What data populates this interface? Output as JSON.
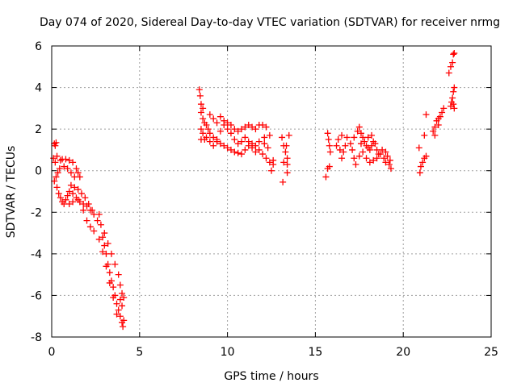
{
  "chart_data": {
    "type": "scatter",
    "title": "Day 074 of 2020, Sidereal Day-to-day VTEC variation (SDTVAR) for receiver nrmg",
    "xlabel": "GPS time / hours",
    "ylabel": "SDTVAR / TECUs",
    "xlim": [
      0,
      25
    ],
    "ylim": [
      -8,
      6
    ],
    "xticks": [
      0,
      5,
      10,
      15,
      20,
      25
    ],
    "yticks": [
      -8,
      -6,
      -4,
      -2,
      0,
      2,
      4,
      6
    ],
    "grid": true,
    "marker": "+",
    "color": "#ff0000",
    "series": [
      {
        "name": "SDTVAR",
        "points": [
          [
            0.15,
            1.3
          ],
          [
            0.2,
            1.2
          ],
          [
            0.25,
            1.35
          ],
          [
            0.1,
            0.6
          ],
          [
            0.2,
            0.4
          ],
          [
            0.3,
            0.7
          ],
          [
            0.15,
            -0.5
          ],
          [
            0.25,
            -0.3
          ],
          [
            0.35,
            -0.1
          ],
          [
            0.45,
            0.1
          ],
          [
            0.5,
            0.5
          ],
          [
            0.6,
            0.55
          ],
          [
            0.8,
            0.55
          ],
          [
            1.0,
            0.5
          ],
          [
            1.2,
            0.4
          ],
          [
            1.4,
            0.1
          ],
          [
            1.5,
            -0.1
          ],
          [
            1.6,
            -0.3
          ],
          [
            1.3,
            -0.3
          ],
          [
            1.1,
            -0.1
          ],
          [
            0.9,
            0.1
          ],
          [
            0.7,
            0.2
          ],
          [
            0.3,
            -0.8
          ],
          [
            0.4,
            -1.1
          ],
          [
            0.5,
            -1.3
          ],
          [
            0.6,
            -1.5
          ],
          [
            0.7,
            -1.6
          ],
          [
            0.9,
            -1.2
          ],
          [
            1.0,
            -1.0
          ],
          [
            1.2,
            -1.1
          ],
          [
            1.4,
            -1.3
          ],
          [
            1.6,
            -1.5
          ],
          [
            1.8,
            -1.6
          ],
          [
            2.0,
            -1.7
          ],
          [
            2.2,
            -1.9
          ],
          [
            2.4,
            -2.1
          ],
          [
            1.1,
            -0.7
          ],
          [
            1.3,
            -0.8
          ],
          [
            1.5,
            -0.9
          ],
          [
            1.7,
            -1.1
          ],
          [
            1.9,
            -1.3
          ],
          [
            2.1,
            -1.6
          ],
          [
            2.3,
            -1.9
          ],
          [
            0.8,
            -1.4
          ],
          [
            1.0,
            -1.6
          ],
          [
            1.2,
            -1.5
          ],
          [
            1.5,
            -1.4
          ],
          [
            1.8,
            -1.9
          ],
          [
            2.0,
            -2.4
          ],
          [
            2.2,
            -2.7
          ],
          [
            2.4,
            -2.9
          ],
          [
            2.6,
            -2.4
          ],
          [
            2.7,
            -2.1
          ],
          [
            2.8,
            -2.6
          ],
          [
            2.9,
            -3.2
          ],
          [
            3.0,
            -3.6
          ],
          [
            3.1,
            -4.0
          ],
          [
            3.2,
            -4.5
          ],
          [
            3.3,
            -4.9
          ],
          [
            3.4,
            -5.3
          ],
          [
            3.5,
            -5.6
          ],
          [
            3.6,
            -6.0
          ],
          [
            3.7,
            -6.4
          ],
          [
            3.8,
            -6.7
          ],
          [
            3.9,
            -7.0
          ],
          [
            4.0,
            -7.3
          ],
          [
            4.05,
            -7.5
          ],
          [
            3.0,
            -3.0
          ],
          [
            3.2,
            -3.5
          ],
          [
            3.4,
            -4.0
          ],
          [
            3.6,
            -4.5
          ],
          [
            3.8,
            -5.0
          ],
          [
            3.9,
            -5.5
          ],
          [
            4.0,
            -5.9
          ],
          [
            4.1,
            -6.1
          ],
          [
            4.0,
            -6.5
          ],
          [
            3.9,
            -6.2
          ],
          [
            2.7,
            -3.3
          ],
          [
            2.9,
            -3.9
          ],
          [
            3.1,
            -4.6
          ],
          [
            3.3,
            -5.4
          ],
          [
            3.5,
            -6.1
          ],
          [
            3.7,
            -6.9
          ],
          [
            4.1,
            -7.2
          ],
          [
            8.4,
            3.9
          ],
          [
            8.45,
            3.6
          ],
          [
            8.5,
            3.2
          ],
          [
            8.5,
            2.8
          ],
          [
            8.6,
            2.5
          ],
          [
            8.7,
            2.3
          ],
          [
            8.5,
            2.0
          ],
          [
            8.6,
            1.8
          ],
          [
            8.5,
            1.5
          ],
          [
            8.7,
            1.5
          ],
          [
            8.8,
            2.2
          ],
          [
            8.9,
            2.0
          ],
          [
            9.0,
            1.8
          ],
          [
            9.2,
            1.6
          ],
          [
            9.4,
            1.4
          ],
          [
            9.6,
            1.3
          ],
          [
            9.8,
            1.2
          ],
          [
            10.0,
            1.1
          ],
          [
            10.2,
            1.0
          ],
          [
            10.4,
            0.9
          ],
          [
            10.6,
            0.85
          ],
          [
            10.8,
            0.8
          ],
          [
            11.0,
            1.0
          ],
          [
            11.2,
            1.2
          ],
          [
            11.4,
            1.3
          ],
          [
            11.6,
            1.2
          ],
          [
            11.8,
            1.0
          ],
          [
            12.0,
            0.8
          ],
          [
            12.2,
            0.6
          ],
          [
            12.4,
            0.4
          ],
          [
            12.6,
            0.3
          ],
          [
            12.6,
            0.5
          ],
          [
            12.5,
            0.0
          ],
          [
            8.8,
            1.6
          ],
          [
            9.0,
            1.4
          ],
          [
            9.2,
            1.2
          ],
          [
            9.4,
            1.5
          ],
          [
            9.6,
            1.9
          ],
          [
            9.8,
            2.2
          ],
          [
            10.0,
            2.0
          ],
          [
            10.2,
            1.8
          ],
          [
            10.4,
            1.5
          ],
          [
            10.6,
            1.3
          ],
          [
            10.8,
            1.4
          ],
          [
            11.0,
            1.6
          ],
          [
            11.2,
            1.4
          ],
          [
            11.4,
            1.1
          ],
          [
            11.6,
            0.9
          ],
          [
            9.6,
            2.6
          ],
          [
            9.8,
            2.4
          ],
          [
            10.0,
            2.3
          ],
          [
            10.2,
            2.2
          ],
          [
            10.4,
            2.0
          ],
          [
            10.6,
            1.9
          ],
          [
            10.8,
            2.0
          ],
          [
            11.0,
            2.1
          ],
          [
            11.2,
            2.2
          ],
          [
            11.4,
            2.1
          ],
          [
            11.6,
            2.0
          ],
          [
            11.8,
            2.2
          ],
          [
            12.0,
            2.2
          ],
          [
            12.2,
            2.1
          ],
          [
            12.4,
            1.7
          ],
          [
            12.1,
            1.3
          ],
          [
            12.3,
            1.1
          ],
          [
            11.8,
            1.4
          ],
          [
            12.1,
            1.6
          ],
          [
            8.6,
            3.0
          ],
          [
            9.0,
            2.7
          ],
          [
            9.2,
            2.5
          ],
          [
            9.4,
            2.3
          ],
          [
            13.1,
            1.6
          ],
          [
            13.2,
            1.2
          ],
          [
            13.3,
            0.9
          ],
          [
            13.4,
            0.6
          ],
          [
            13.4,
            0.3
          ],
          [
            13.2,
            0.4
          ],
          [
            13.4,
            -0.1
          ],
          [
            13.15,
            -0.55
          ],
          [
            13.5,
            1.7
          ],
          [
            13.35,
            1.2
          ],
          [
            15.6,
            -0.3
          ],
          [
            15.7,
            0.1
          ],
          [
            15.8,
            0.2
          ],
          [
            15.7,
            1.8
          ],
          [
            15.75,
            1.5
          ],
          [
            15.8,
            1.2
          ],
          [
            15.85,
            0.9
          ],
          [
            16.2,
            1.2
          ],
          [
            16.4,
            1.0
          ],
          [
            16.5,
            0.6
          ],
          [
            16.6,
            0.9
          ],
          [
            16.7,
            1.2
          ],
          [
            16.8,
            1.6
          ],
          [
            16.3,
            1.5
          ],
          [
            16.5,
            1.7
          ],
          [
            17.0,
            1.3
          ],
          [
            17.1,
            1.0
          ],
          [
            17.2,
            0.6
          ],
          [
            17.3,
            0.3
          ],
          [
            17.2,
            1.6
          ],
          [
            17.4,
            1.9
          ],
          [
            17.5,
            2.1
          ],
          [
            17.6,
            1.8
          ],
          [
            17.7,
            1.6
          ],
          [
            17.8,
            1.4
          ],
          [
            17.9,
            1.2
          ],
          [
            18.0,
            1.1
          ],
          [
            18.1,
            1.0
          ],
          [
            18.2,
            1.2
          ],
          [
            18.3,
            1.4
          ],
          [
            18.4,
            1.3
          ],
          [
            18.5,
            1.0
          ],
          [
            18.6,
            0.8
          ],
          [
            17.5,
            0.7
          ],
          [
            17.7,
            0.9
          ],
          [
            17.9,
            0.6
          ],
          [
            18.1,
            0.4
          ],
          [
            18.3,
            0.5
          ],
          [
            18.5,
            0.6
          ],
          [
            18.7,
            0.8
          ],
          [
            18.9,
            0.6
          ],
          [
            19.0,
            0.4
          ],
          [
            19.1,
            0.7
          ],
          [
            19.2,
            0.3
          ],
          [
            19.3,
            0.1
          ],
          [
            19.25,
            0.5
          ],
          [
            18.8,
            1.0
          ],
          [
            19.0,
            0.9
          ],
          [
            18.0,
            1.6
          ],
          [
            18.2,
            1.7
          ],
          [
            17.6,
            1.3
          ],
          [
            20.9,
            1.1
          ],
          [
            21.0,
            0.2
          ],
          [
            20.95,
            -0.1
          ],
          [
            21.2,
            1.7
          ],
          [
            21.3,
            2.7
          ],
          [
            21.2,
            0.6
          ],
          [
            21.1,
            0.4
          ],
          [
            21.3,
            0.7
          ],
          [
            21.7,
            1.9
          ],
          [
            21.8,
            2.1
          ],
          [
            21.9,
            2.4
          ],
          [
            22.0,
            2.5
          ],
          [
            22.1,
            2.6
          ],
          [
            22.2,
            2.8
          ],
          [
            22.3,
            3.0
          ],
          [
            21.8,
            1.7
          ],
          [
            22.0,
            2.2
          ],
          [
            22.7,
            3.1
          ],
          [
            22.75,
            3.3
          ],
          [
            22.8,
            3.5
          ],
          [
            22.85,
            3.8
          ],
          [
            22.9,
            4.0
          ],
          [
            22.85,
            3.2
          ],
          [
            22.9,
            3.0
          ],
          [
            22.6,
            4.7
          ],
          [
            22.7,
            5.0
          ],
          [
            22.8,
            5.2
          ],
          [
            22.85,
            5.6
          ],
          [
            22.9,
            5.65
          ]
        ]
      }
    ]
  }
}
